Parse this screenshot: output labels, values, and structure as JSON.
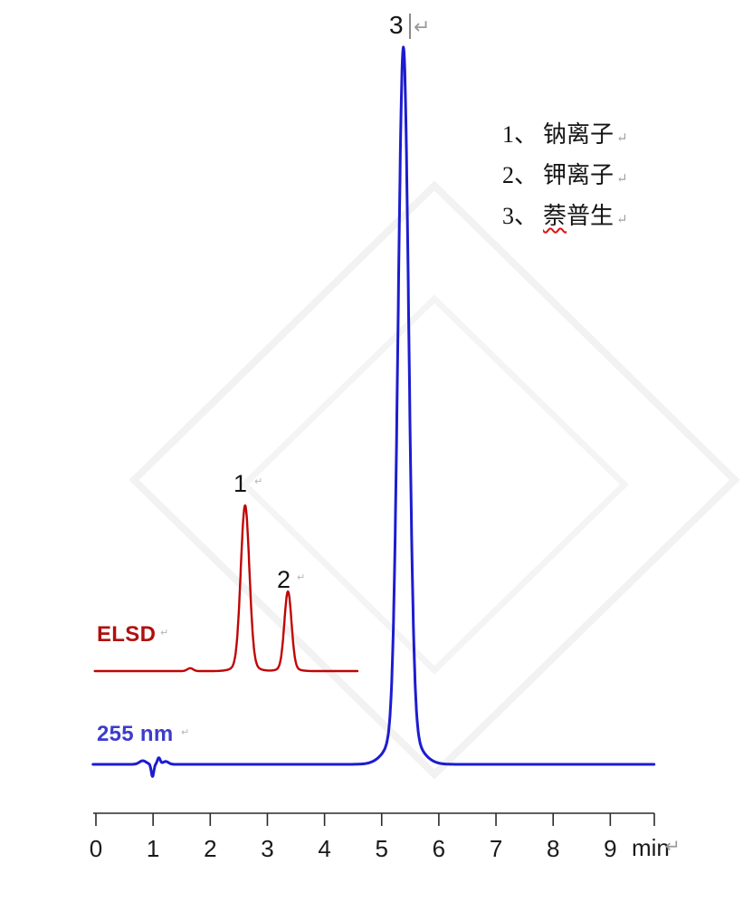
{
  "chart_data": {
    "type": "line",
    "description": "HPLC chromatogram with two stacked detector traces",
    "xlabel": "min",
    "x_ticks": [
      "0",
      "1",
      "2",
      "3",
      "4",
      "5",
      "6",
      "7",
      "8",
      "9"
    ],
    "xlim": [
      -0.05,
      9.77
    ],
    "grid": false,
    "series": [
      {
        "name": "ELSD",
        "color": "#c00505",
        "label_color": "#b01010",
        "t_range": [
          -0.02,
          4.58
        ],
        "peaks": [
          {
            "label": "1",
            "compound": "钠离子",
            "t_min": 2.61,
            "height_rel": 0.23
          },
          {
            "label": "2",
            "compound": "钾离子",
            "t_min": 3.36,
            "height_rel": 0.11
          }
        ],
        "components": [
          {
            "c": 2.61,
            "h": 0.222,
            "s": 0.075
          },
          {
            "c": 2.61,
            "h": 0.009,
            "s": 0.17
          },
          {
            "c": 3.36,
            "h": 0.106,
            "s": 0.062
          },
          {
            "c": 3.36,
            "h": 0.005,
            "s": 0.14
          },
          {
            "c": 1.65,
            "h": 0.004,
            "s": 0.05
          }
        ]
      },
      {
        "name": "255 nm",
        "color": "#1c1cd0",
        "label_color": "#3c3ccc",
        "t_range": [
          -0.05,
          9.77
        ],
        "peaks": [
          {
            "label": "3",
            "compound": "萘普生",
            "t_min": 5.38,
            "height_rel": 1.0
          }
        ],
        "components": [
          {
            "c": 5.38,
            "h": 0.95,
            "s": 0.092
          },
          {
            "c": 5.38,
            "h": 0.05,
            "s": 0.24
          },
          {
            "c": 0.82,
            "h": 0.005,
            "s": 0.06
          },
          {
            "c": 0.99,
            "h": -0.017,
            "s": 0.022
          },
          {
            "c": 1.1,
            "h": 0.009,
            "s": 0.025
          },
          {
            "c": 1.22,
            "h": 0.004,
            "s": 0.05
          }
        ]
      }
    ]
  },
  "legend": {
    "items": [
      {
        "num": "1、",
        "text": "钠离子"
      },
      {
        "num": "2、",
        "text": "钾离子"
      },
      {
        "num": "3、",
        "text": "萘普生",
        "wavy_prefix": "萘",
        "rest": "普生"
      }
    ]
  },
  "marks": {
    "line_break": "↵"
  }
}
